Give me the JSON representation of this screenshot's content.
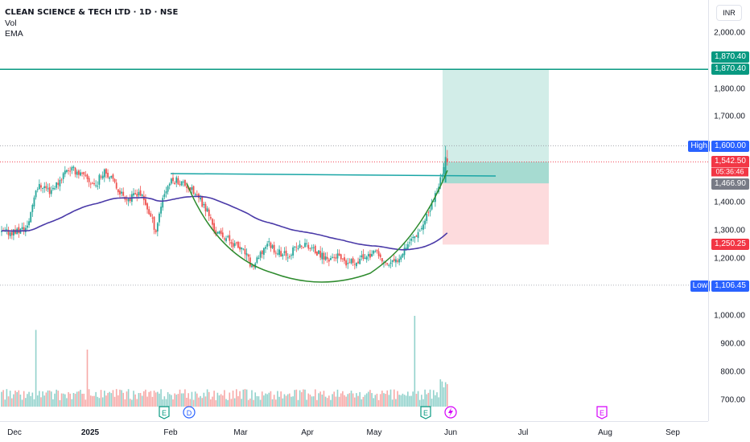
{
  "legend": {
    "title": "CLEAN SCIENCE & TECH LTD · 1D · NSE",
    "vol": "Vol",
    "ema": "EMA"
  },
  "currency": "INR",
  "price_axis": [
    "2,000.00",
    "1,800.00",
    "1,700.00",
    "1,400.00",
    "1,300.00",
    "1,200.00",
    "1,000.00",
    "900.00",
    "800.00",
    "700.00"
  ],
  "volume_axis_labels": [
    "900.00",
    "800.00",
    "700.00"
  ],
  "tags": {
    "target_a": "1,870.40",
    "target_b": "1,870.40",
    "high_label": "High",
    "high_value": "1,600.00",
    "last_price": "1,542.50",
    "countdown": "05:36:46",
    "entry": "1,466.90",
    "stop": "1,250.25",
    "low_label": "Low",
    "low_value": "1,106.45"
  },
  "time_axis": [
    "Dec",
    "2025",
    "Feb",
    "Mar",
    "Apr",
    "May",
    "Jun",
    "Jul",
    "Aug",
    "Sep"
  ],
  "colors": {
    "up": "#26a69a",
    "down": "#ef5350",
    "ema": "#4a3aa8",
    "cup": "#2e8b2e",
    "neck": "#1aa6a6",
    "target": "#089981",
    "stop": "#f23645",
    "high": "#2962ff",
    "low": "#2962ff",
    "entry": "#787b86"
  },
  "event_icons": [
    "E",
    "D",
    "E",
    "E"
  ],
  "chart_data": {
    "type": "candlestick",
    "title": "CLEAN SCIENCE & TECH LTD · 1D · NSE",
    "currency": "INR",
    "y_ticks": [
      1000,
      1200,
      1300,
      1400,
      1700,
      1800,
      2000
    ],
    "x_ticks": [
      "Dec",
      "2025",
      "Feb",
      "Mar",
      "Apr",
      "May",
      "Jun",
      "Jul",
      "Aug",
      "Sep"
    ],
    "levels": {
      "high": 1600.0,
      "low": 1106.45,
      "last": 1542.5,
      "entry": 1466.9,
      "target": 1870.4,
      "stop": 1250.25
    },
    "close_path": [
      [
        0,
        1290
      ],
      [
        5,
        1295
      ],
      [
        10,
        1300
      ],
      [
        15,
        1310
      ],
      [
        20,
        1450
      ],
      [
        24,
        1460
      ],
      [
        28,
        1440
      ],
      [
        33,
        1470
      ],
      [
        38,
        1520
      ],
      [
        44,
        1510
      ],
      [
        50,
        1480
      ],
      [
        55,
        1460
      ],
      [
        60,
        1520
      ],
      [
        64,
        1480
      ],
      [
        70,
        1430
      ],
      [
        75,
        1410
      ],
      [
        80,
        1440
      ],
      [
        85,
        1380
      ],
      [
        90,
        1300
      ],
      [
        94,
        1420
      ],
      [
        98,
        1470
      ],
      [
        102,
        1480
      ],
      [
        108,
        1460
      ],
      [
        114,
        1420
      ],
      [
        120,
        1370
      ],
      [
        125,
        1290
      ],
      [
        130,
        1280
      ],
      [
        136,
        1250
      ],
      [
        142,
        1220
      ],
      [
        146,
        1170
      ],
      [
        150,
        1200
      ],
      [
        155,
        1260
      ],
      [
        160,
        1230
      ],
      [
        166,
        1210
      ],
      [
        172,
        1240
      ],
      [
        178,
        1250
      ],
      [
        184,
        1220
      ],
      [
        190,
        1200
      ],
      [
        196,
        1210
      ],
      [
        200,
        1180
      ],
      [
        206,
        1190
      ],
      [
        212,
        1210
      ],
      [
        218,
        1220
      ],
      [
        224,
        1180
      ],
      [
        230,
        1190
      ],
      [
        236,
        1250
      ],
      [
        242,
        1290
      ],
      [
        247,
        1330
      ],
      [
        252,
        1410
      ],
      [
        255,
        1460
      ],
      [
        258,
        1530
      ],
      [
        260,
        1542.5
      ]
    ],
    "volume_spikes": [
      [
        20,
        950
      ],
      [
        50,
        880
      ],
      [
        241,
        1000
      ]
    ]
  }
}
